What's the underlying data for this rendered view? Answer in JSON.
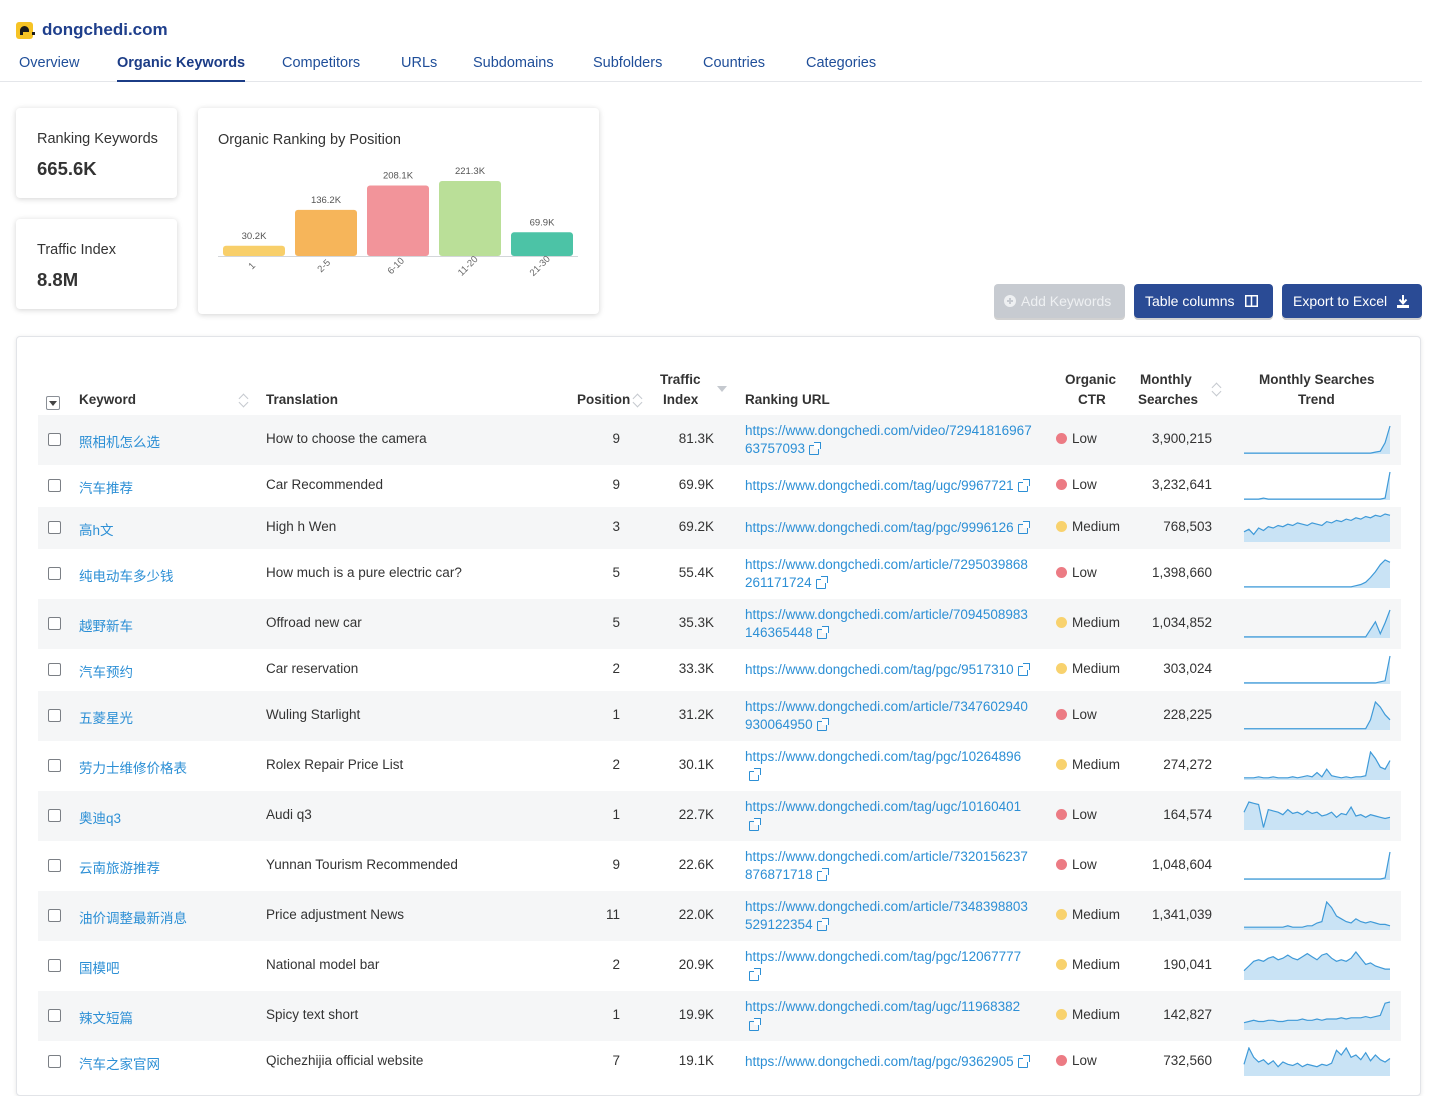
{
  "site": {
    "name": "dongchedi.com"
  },
  "tabs": [
    "Overview",
    "Organic Keywords",
    "Competitors",
    "URLs",
    "Subdomains",
    "Subfolders",
    "Countries",
    "Categories"
  ],
  "active_tab": "Organic Keywords",
  "stats": {
    "ranking_keywords": {
      "label": "Ranking Keywords",
      "value": "665.6K"
    },
    "traffic_index": {
      "label": "Traffic Index",
      "value": "8.8M"
    }
  },
  "position_chart": {
    "title": "Organic Ranking by Position",
    "chart_data": {
      "type": "bar",
      "categories": [
        "1",
        "2-5",
        "6-10",
        "11-20",
        "21-30"
      ],
      "values": [
        30.2,
        136.2,
        208.1,
        221.3,
        69.9
      ],
      "value_labels": [
        "30.2K",
        "136.2K",
        "208.1K",
        "221.3K",
        "69.9K"
      ],
      "colors": [
        "#f8cf6a",
        "#f6b55a",
        "#f2949a",
        "#badf98",
        "#4cc3a6"
      ]
    }
  },
  "buttons": {
    "add_keywords": "Add Keywords",
    "table_columns": "Table columns",
    "export": "Export to Excel"
  },
  "table": {
    "headers": {
      "keyword": "Keyword",
      "translation": "Translation",
      "position": "Position",
      "traffic_index_1": "Traffic",
      "traffic_index_2": "Index",
      "ranking_url": "Ranking URL",
      "ctr_1": "Organic",
      "ctr_2": "CTR",
      "ms_1": "Monthly",
      "ms_2": "Searches",
      "trend_1": "Monthly Searches",
      "trend_2": "Trend"
    },
    "ctr_colors": {
      "Low": "#ec7b84",
      "Medium": "#f8d26e"
    },
    "rows": [
      {
        "keyword": "照相机怎么选",
        "translation": "How to choose the camera",
        "position": "9",
        "traffic_index": "81.3K",
        "url_1": "https://www.dongchedi.com/video/72941816967",
        "url_2": "63757093",
        "ctr": "Low",
        "monthly_searches": "3,900,215",
        "trend": [
          1,
          1,
          1,
          1,
          1,
          1,
          1,
          1,
          1,
          1,
          1,
          1,
          1,
          1,
          1,
          1,
          1,
          1,
          1,
          1,
          1,
          1,
          1,
          1,
          1,
          1,
          1,
          2,
          3,
          12,
          30
        ]
      },
      {
        "keyword": "汽车推荐",
        "translation": "Car Recommended",
        "position": "9",
        "traffic_index": "69.9K",
        "url_1": "https://www.dongchedi.com/tag/ugc/9967721",
        "url_2": "",
        "ctr": "Low",
        "monthly_searches": "3,232,641",
        "trend": [
          1,
          1,
          1,
          1,
          2,
          1,
          1,
          1,
          1,
          1,
          1,
          1,
          1,
          1,
          1,
          1,
          1,
          1,
          1,
          1,
          1,
          1,
          1,
          1,
          1,
          1,
          1,
          1,
          1,
          2,
          30
        ]
      },
      {
        "keyword": "高h文",
        "translation": "High h Wen",
        "position": "3",
        "traffic_index": "69.2K",
        "url_1": "https://www.dongchedi.com/tag/pgc/9996126",
        "url_2": "",
        "ctr": "Medium",
        "monthly_searches": "768,503",
        "trend": [
          8,
          10,
          6,
          11,
          9,
          12,
          11,
          13,
          12,
          14,
          13,
          15,
          14,
          13,
          15,
          14,
          13,
          16,
          15,
          17,
          16,
          18,
          17,
          19,
          18,
          20,
          19,
          21,
          20,
          22,
          21
        ]
      },
      {
        "keyword": "纯电动车多少钱",
        "translation": "How much is a pure electric car?",
        "position": "5",
        "traffic_index": "55.4K",
        "url_1": "https://www.dongchedi.com/article/7295039868",
        "url_2": "261171724",
        "ctr": "Low",
        "monthly_searches": "1,398,660",
        "trend": [
          1,
          1,
          1,
          1,
          1,
          1,
          1,
          1,
          1,
          1,
          1,
          1,
          1,
          1,
          1,
          1,
          1,
          1,
          1,
          1,
          1,
          1,
          1,
          2,
          3,
          5,
          9,
          14,
          20,
          24,
          22
        ]
      },
      {
        "keyword": "越野新车",
        "translation": "Offroad new car",
        "position": "5",
        "traffic_index": "35.3K",
        "url_1": "https://www.dongchedi.com/article/7094508983",
        "url_2": "146365448",
        "ctr": "Medium",
        "monthly_searches": "1,034,852",
        "trend": [
          1,
          1,
          1,
          1,
          1,
          1,
          1,
          1,
          1,
          1,
          1,
          1,
          1,
          1,
          1,
          1,
          1,
          1,
          1,
          1,
          1,
          1,
          1,
          1,
          1,
          1,
          8,
          15,
          4,
          14,
          26
        ]
      },
      {
        "keyword": "汽车预约",
        "translation": "Car reservation",
        "position": "2",
        "traffic_index": "33.3K",
        "url_1": "https://www.dongchedi.com/tag/pgc/9517310",
        "url_2": "",
        "ctr": "Medium",
        "monthly_searches": "303,024",
        "trend": [
          1,
          1,
          1,
          1,
          1,
          1,
          1,
          1,
          1,
          1,
          1,
          1,
          1,
          1,
          1,
          1,
          1,
          1,
          1,
          1,
          1,
          1,
          1,
          1,
          1,
          1,
          1,
          1,
          2,
          3,
          26
        ]
      },
      {
        "keyword": "五菱星光",
        "translation": "Wuling Starlight",
        "position": "1",
        "traffic_index": "31.2K",
        "url_1": "https://www.dongchedi.com/article/7347602940",
        "url_2": "930064950",
        "ctr": "Low",
        "monthly_searches": "228,225",
        "trend": [
          1,
          1,
          1,
          1,
          1,
          1,
          1,
          1,
          1,
          1,
          1,
          1,
          1,
          1,
          1,
          1,
          1,
          1,
          1,
          1,
          1,
          1,
          1,
          1,
          1,
          1,
          8,
          22,
          18,
          12,
          8
        ]
      },
      {
        "keyword": "劳力士维修价格表",
        "translation": "Rolex Repair Price List",
        "position": "2",
        "traffic_index": "30.1K",
        "url_1": "https://www.dongchedi.com/tag/pgc/10264896",
        "url_2": "",
        "ctr": "Medium",
        "monthly_searches": "274,272",
        "trend": [
          2,
          2,
          2,
          3,
          2,
          2,
          3,
          2,
          2,
          2,
          3,
          2,
          3,
          4,
          3,
          7,
          3,
          10,
          4,
          3,
          2,
          3,
          2,
          3,
          3,
          4,
          26,
          20,
          12,
          10,
          18
        ]
      },
      {
        "keyword": "奥迪q3",
        "translation": "Audi q3",
        "position": "1",
        "traffic_index": "22.7K",
        "url_1": "https://www.dongchedi.com/tag/ugc/10160401",
        "url_2": "",
        "ctr": "Low",
        "monthly_searches": "164,574",
        "trend": [
          14,
          22,
          21,
          20,
          2,
          16,
          15,
          14,
          12,
          16,
          13,
          14,
          12,
          15,
          13,
          14,
          11,
          12,
          14,
          10,
          13,
          12,
          18,
          11,
          12,
          10,
          12,
          11,
          10,
          9,
          10
        ]
      },
      {
        "keyword": "云南旅游推荐",
        "translation": "Yunnan Tourism Recommended",
        "position": "9",
        "traffic_index": "22.6K",
        "url_1": "https://www.dongchedi.com/article/7320156237",
        "url_2": "876871718",
        "ctr": "Low",
        "monthly_searches": "1,048,604",
        "trend": [
          1,
          1,
          1,
          1,
          1,
          1,
          1,
          1,
          1,
          1,
          1,
          1,
          1,
          1,
          1,
          1,
          1,
          1,
          1,
          1,
          1,
          1,
          1,
          1,
          1,
          1,
          1,
          1,
          1,
          2,
          28
        ]
      },
      {
        "keyword": "油价调整最新消息",
        "translation": "Price adjustment News",
        "position": "11",
        "traffic_index": "22.0K",
        "url_1": "https://www.dongchedi.com/article/7348398803",
        "url_2": "529122354",
        "ctr": "Medium",
        "monthly_searches": "1,341,039",
        "trend": [
          2,
          2,
          2,
          2,
          2,
          2,
          2,
          2,
          2,
          3,
          2,
          2,
          2,
          3,
          3,
          5,
          6,
          20,
          16,
          10,
          8,
          6,
          5,
          8,
          6,
          5,
          6,
          5,
          4,
          4,
          3
        ]
      },
      {
        "keyword": "国模吧",
        "translation": "National model bar",
        "position": "2",
        "traffic_index": "20.9K",
        "url_1": "https://www.dongchedi.com/tag/pgc/12067777",
        "url_2": "",
        "ctr": "Medium",
        "monthly_searches": "190,041",
        "trend": [
          6,
          9,
          12,
          13,
          12,
          14,
          15,
          13,
          14,
          16,
          14,
          13,
          15,
          17,
          15,
          13,
          16,
          17,
          14,
          12,
          13,
          12,
          14,
          18,
          14,
          10,
          11,
          9,
          8,
          7,
          7
        ]
      },
      {
        "keyword": "辣文短篇",
        "translation": "Spicy text short",
        "position": "1",
        "traffic_index": "19.9K",
        "url_1": "https://www.dongchedi.com/tag/ugc/11968382",
        "url_2": "",
        "ctr": "Medium",
        "monthly_searches": "142,827",
        "trend": [
          6,
          7,
          8,
          7,
          7,
          8,
          8,
          7,
          7,
          8,
          8,
          8,
          9,
          8,
          8,
          9,
          8,
          9,
          9,
          9,
          10,
          9,
          10,
          10,
          10,
          11,
          10,
          11,
          12,
          22,
          23
        ]
      },
      {
        "keyword": "汽车之家官网",
        "translation": "Qichezhijia official website",
        "position": "7",
        "traffic_index": "19.1K",
        "url_1": "https://www.dongchedi.com/tag/pgc/9362905",
        "url_2": "",
        "ctr": "Low",
        "monthly_searches": "732,560",
        "trend": [
          10,
          24,
          16,
          12,
          14,
          10,
          13,
          8,
          12,
          10,
          9,
          11,
          8,
          10,
          9,
          8,
          10,
          9,
          11,
          22,
          18,
          24,
          16,
          18,
          14,
          20,
          13,
          18,
          14,
          12,
          15
        ]
      }
    ]
  }
}
